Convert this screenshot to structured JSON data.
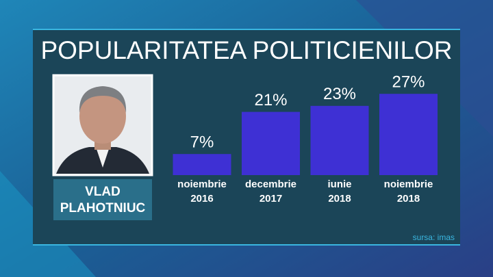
{
  "chart_data": {
    "type": "bar",
    "title": "POPULARITATEA POLITICIENILOR",
    "person": [
      "VLAD",
      "PLAHOTNIUC"
    ],
    "categories": [
      "noiembrie 2016",
      "decembrie 2017",
      "iunie 2018",
      "noiembrie 2018"
    ],
    "values": [
      7,
      21,
      23,
      27
    ],
    "value_labels": [
      "7%",
      "21%",
      "23%",
      "27%"
    ],
    "color": "#3e30d4",
    "source": "sursa: imas"
  }
}
